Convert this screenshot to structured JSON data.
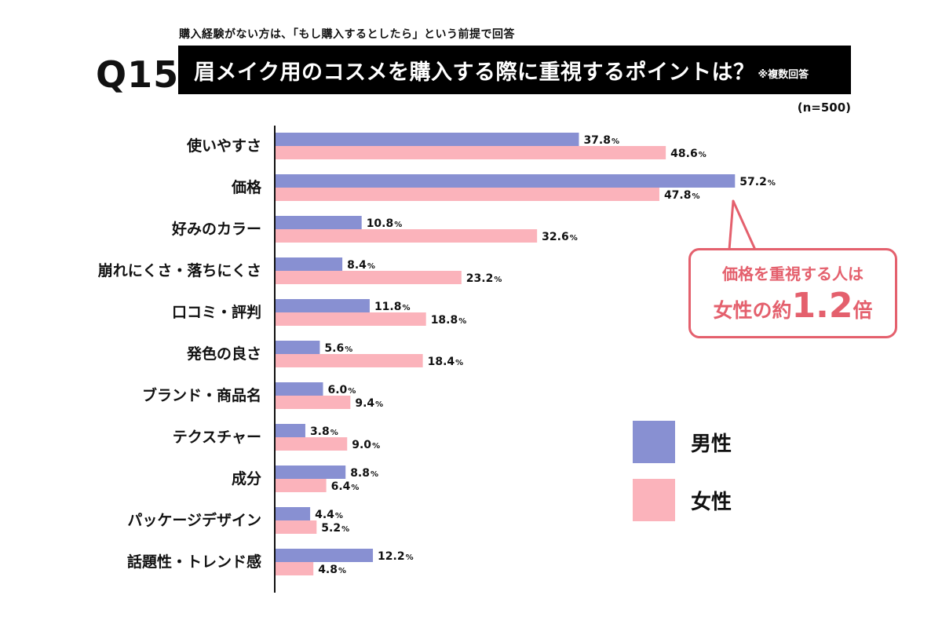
{
  "header": {
    "precondition": "購入経験がない方は､「もし購入するとしたら」という前提で回答",
    "question_number": "Q15",
    "title": "眉メイク用のコスメを購入する際に重視するポイントは？",
    "title_note": "※複数回答",
    "sample_size": "(n=500)"
  },
  "legend": {
    "male": "男性",
    "female": "女性"
  },
  "colors": {
    "male": "#8890d2",
    "female": "#fbb3bb",
    "accent": "#e4606d",
    "title_bg": "#000000"
  },
  "callout": {
    "line1": "価格を重視する人は",
    "prefix": "女性の約",
    "ratio": "1.2",
    "suffix": "倍"
  },
  "chart_data": {
    "type": "bar",
    "orientation": "horizontal",
    "unit": "%",
    "categories": [
      "使いやすさ",
      "価格",
      "好みのカラー",
      "崩れにくさ・落ちにくさ",
      "口コミ・評判",
      "発色の良さ",
      "ブランド・商品名",
      "テクスチャー",
      "成分",
      "パッケージデザイン",
      "話題性・トレンド感"
    ],
    "series": [
      {
        "name": "男性",
        "values": [
          37.8,
          57.2,
          10.8,
          8.4,
          11.8,
          5.6,
          6.0,
          3.8,
          8.8,
          4.4,
          12.2
        ]
      },
      {
        "name": "女性",
        "values": [
          48.6,
          47.8,
          32.6,
          23.2,
          18.8,
          18.4,
          9.4,
          9.0,
          6.4,
          5.2,
          4.8
        ]
      }
    ],
    "xlim": [
      0,
      100
    ],
    "grid": false,
    "legend_position": "right"
  }
}
